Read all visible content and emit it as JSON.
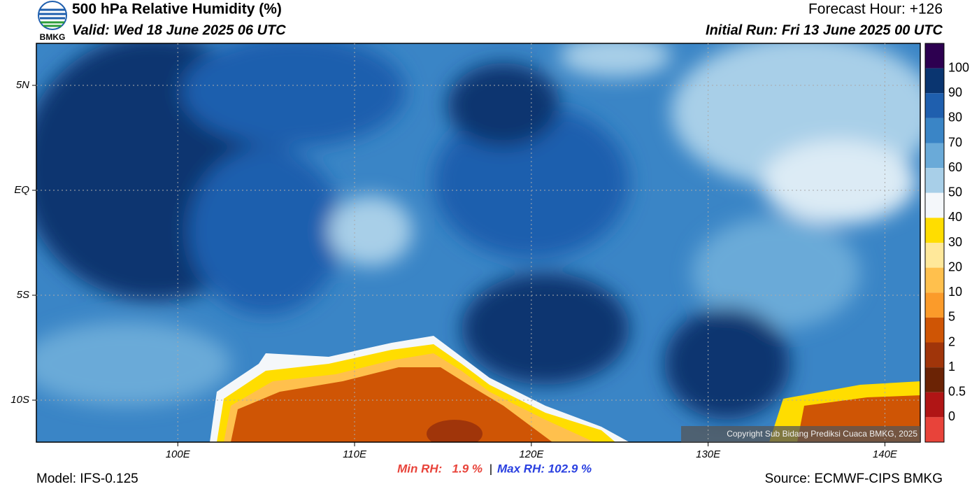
{
  "header": {
    "title": "500 hPa Relative Humidity (%)",
    "valid": "Valid: Wed 18 June 2025 06 UTC",
    "forecast_hour": "Forecast Hour: +126",
    "initial_run": "Initial Run: Fri 13 June 2025 00 UTC",
    "logo": "BMKG"
  },
  "map": {
    "xlim": [
      92,
      142
    ],
    "ylim": [
      -12,
      7
    ],
    "xticks": [
      {
        "value": 100,
        "label": "100E"
      },
      {
        "value": 110,
        "label": "110E"
      },
      {
        "value": 120,
        "label": "120E"
      },
      {
        "value": 130,
        "label": "130E"
      },
      {
        "value": 140,
        "label": "140E"
      }
    ],
    "yticks": [
      {
        "value": 5,
        "label": "5N"
      },
      {
        "value": 0,
        "label": "EQ"
      },
      {
        "value": -5,
        "label": "5S"
      },
      {
        "value": -10,
        "label": "10S"
      }
    ],
    "copyright": "Copyright Sub Bidang Prediksi Cuaca BMKG, 2025"
  },
  "colorbar": {
    "colors": [
      "#2d0050",
      "#0a3570",
      "#1f5fae",
      "#3a85c6",
      "#6aaad8",
      "#a8cfe8",
      "#f4f7fa",
      "#ffdd00",
      "#ffe89a",
      "#ffc04d",
      "#fb9b2a",
      "#cf5505",
      "#a0350a",
      "#6b2305",
      "#b01515",
      "#e8433a"
    ],
    "labels": [
      "100",
      "90",
      "80",
      "70",
      "60",
      "50",
      "40",
      "30",
      "20",
      "10",
      "5",
      "2",
      "1",
      "0.5",
      "0"
    ]
  },
  "footer": {
    "min": "Min RH:   1.9 %",
    "separator": "|",
    "max": "Max RH: 102.9 %",
    "model": "Model: IFS-0.125",
    "source": "Source: ECMWF-CIPS BMKG"
  }
}
